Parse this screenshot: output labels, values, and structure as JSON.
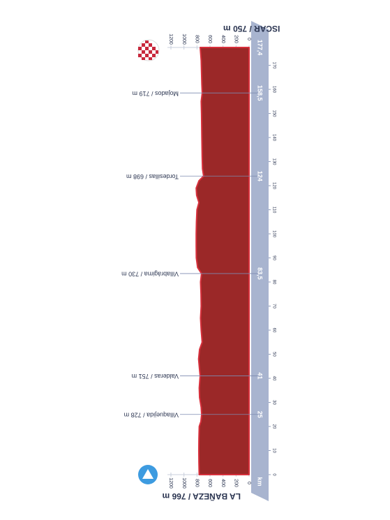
{
  "chart_data": {
    "type": "area",
    "start": "LA BAÑEZA / 766 m",
    "finish": "ISCAR / 750 m",
    "x_label": "km",
    "x": [
      0,
      5,
      10,
      15,
      20,
      22,
      25,
      28,
      32,
      36,
      41,
      44,
      48,
      52,
      55,
      60,
      65,
      70,
      75,
      80,
      83.5,
      86,
      90,
      95,
      100,
      105,
      110,
      113,
      116,
      119,
      122,
      124,
      127,
      132,
      140,
      150,
      155,
      158.5,
      162,
      167,
      172,
      177.4
    ],
    "values": [
      766,
      770,
      772,
      770,
      765,
      740,
      728,
      735,
      760,
      765,
      751,
      762,
      775,
      760,
      720,
      735,
      745,
      735,
      738,
      745,
      730,
      790,
      810,
      812,
      812,
      808,
      800,
      770,
      805,
      812,
      770,
      698,
      715,
      720,
      725,
      730,
      735,
      719,
      725,
      730,
      735,
      750
    ],
    "color": "#9b2828",
    "xlim": [
      0,
      177.4
    ],
    "xticks": [
      0,
      10,
      20,
      30,
      40,
      50,
      60,
      70,
      80,
      90,
      100,
      110,
      120,
      130,
      140,
      150,
      160,
      170
    ],
    "ylim": [
      0,
      1200
    ],
    "yticks": [
      0,
      200,
      400,
      600,
      800,
      1000,
      1200
    ],
    "waypoints": [
      {
        "km": 25,
        "label": "Villaquejida / 728 m"
      },
      {
        "km": 41,
        "label": "Valderas / 751 m"
      },
      {
        "km": {
          "value": 83.5,
          "label": "83,5"
        },
        "label": "Villabrágima / 730 m"
      },
      {
        "km": 124,
        "label": "Tordesillas / 698 m"
      },
      {
        "km": {
          "value": 158.5,
          "label": "158,5"
        },
        "label": "Mojados / 719 m"
      },
      {
        "km": {
          "value": 177.4,
          "label": "177,4"
        }
      }
    ]
  }
}
